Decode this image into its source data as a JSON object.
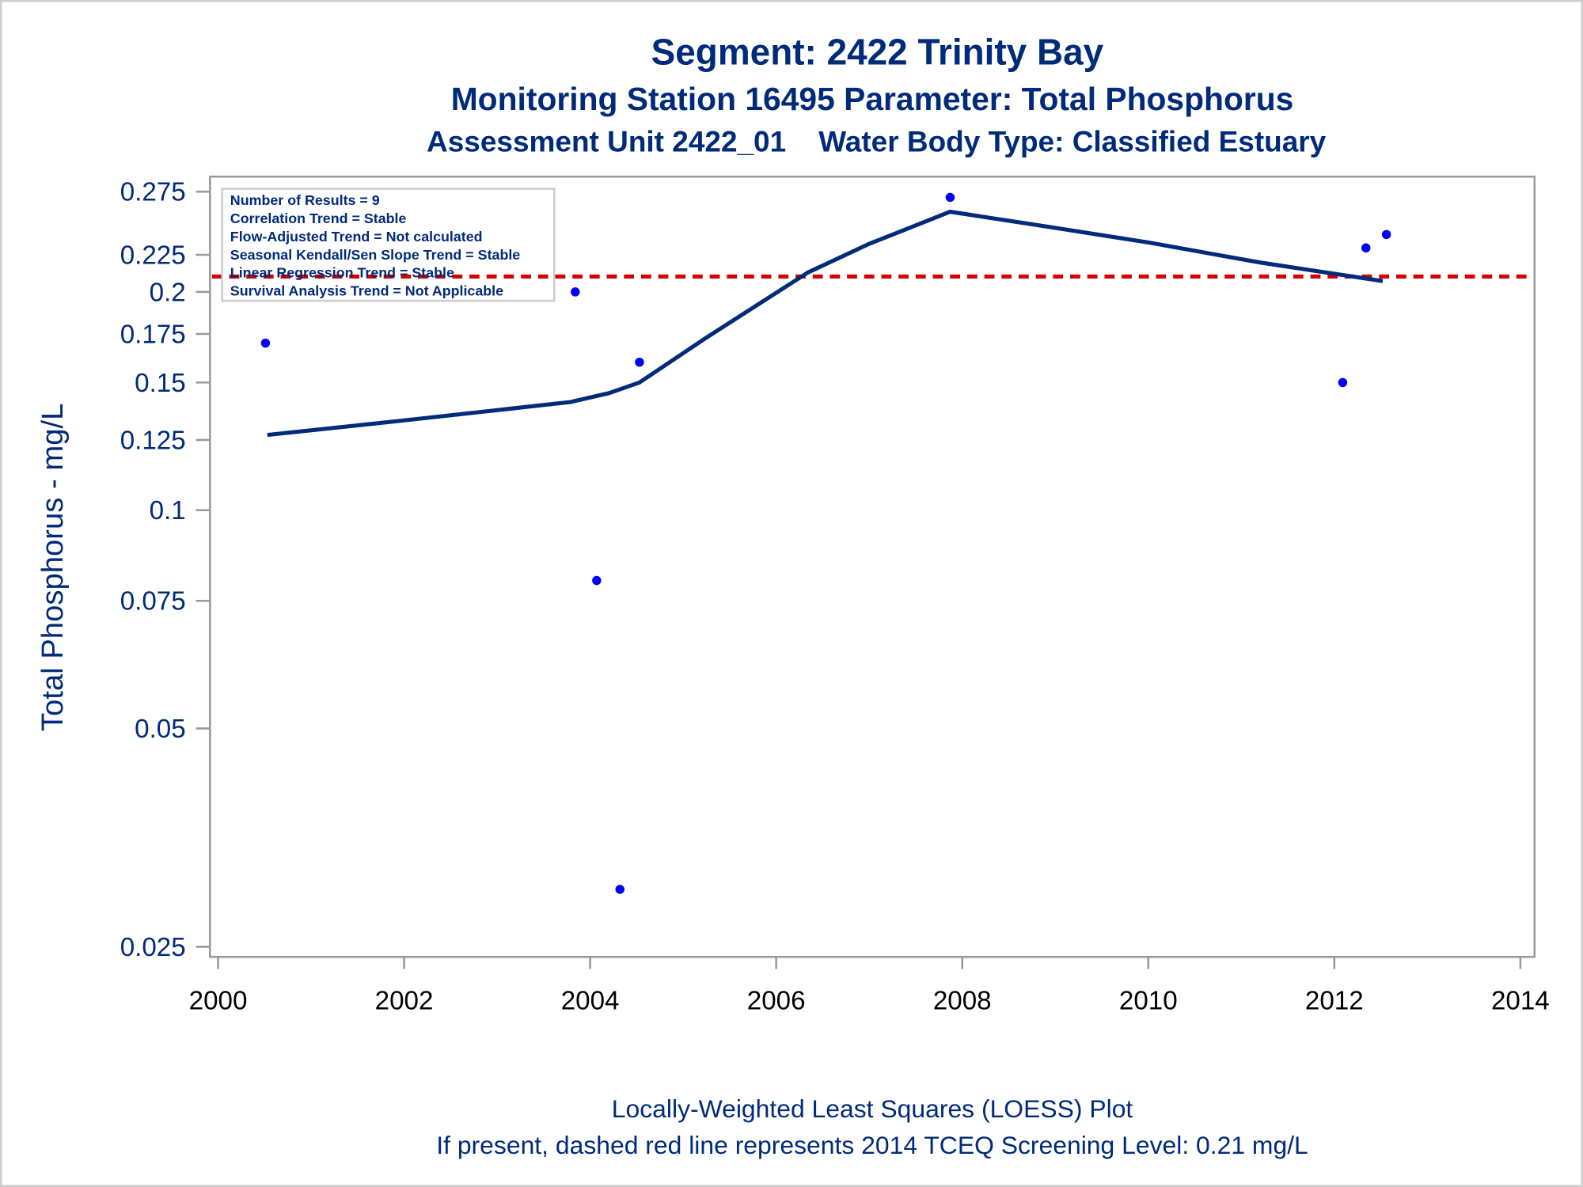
{
  "chart_data": {
    "type": "scatter",
    "title": "Segment: 2422  Trinity Bay",
    "subtitle1": "Monitoring Station 16495 Parameter: Total Phosphorus",
    "subtitle2": "Assessment Unit 2422_01    Water Body Type: Classified Estuary",
    "xlabel": "",
    "ylabel": "Total Phosphorus - mg/L",
    "footnote1": "Locally-Weighted Least Squares (LOESS) Plot",
    "footnote2": "If present, dashed red line represents 2014 TCEQ Screening Level: 0.21 mg/L",
    "xlim": [
      2000,
      2014
    ],
    "ylim": [
      0.025,
      0.28
    ],
    "yscale": "log",
    "grid": false,
    "x_ticks": [
      "2000",
      "2002",
      "2004",
      "2006",
      "2008",
      "2010",
      "2012",
      "2014"
    ],
    "y_ticks": [
      "0.025",
      "0.05",
      "0.075",
      "0.1",
      "0.125",
      "0.15",
      "0.175",
      "0.2",
      "0.225",
      "0.275"
    ],
    "points": [
      {
        "x": 2000.51,
        "y": 0.17
      },
      {
        "x": 2003.84,
        "y": 0.2
      },
      {
        "x": 2004.07,
        "y": 0.08
      },
      {
        "x": 2004.32,
        "y": 0.03
      },
      {
        "x": 2004.53,
        "y": 0.16
      },
      {
        "x": 2007.87,
        "y": 0.27
      },
      {
        "x": 2012.09,
        "y": 0.15
      },
      {
        "x": 2012.34,
        "y": 0.23
      },
      {
        "x": 2012.56,
        "y": 0.24
      }
    ],
    "loess": [
      {
        "x": 2000.53,
        "y": 0.127
      },
      {
        "x": 2002.0,
        "y": 0.133
      },
      {
        "x": 2003.79,
        "y": 0.141
      },
      {
        "x": 2004.2,
        "y": 0.145
      },
      {
        "x": 2004.53,
        "y": 0.15
      },
      {
        "x": 2005.25,
        "y": 0.173
      },
      {
        "x": 2006.34,
        "y": 0.2127
      },
      {
        "x": 2007.0,
        "y": 0.233
      },
      {
        "x": 2007.87,
        "y": 0.258
      },
      {
        "x": 2008.92,
        "y": 0.246
      },
      {
        "x": 2010.0,
        "y": 0.234
      },
      {
        "x": 2011.2,
        "y": 0.2196
      },
      {
        "x": 2012.52,
        "y": 0.207
      }
    ],
    "screening_level": 0.21,
    "colors": {
      "points": "#0000ff",
      "loess": "#002a7a",
      "screening": "#d40000",
      "text": "#002a7a"
    },
    "legend": {
      "placement": "top-left",
      "lines": [
        "Number of Results = 9",
        "Correlation Trend = Stable",
        "Flow-Adjusted Trend = Not calculated",
        "Seasonal Kendall/Sen Slope Trend = Stable",
        "Linear Regression Trend = Stable",
        "Survival Analysis Trend = Not Applicable"
      ]
    }
  }
}
